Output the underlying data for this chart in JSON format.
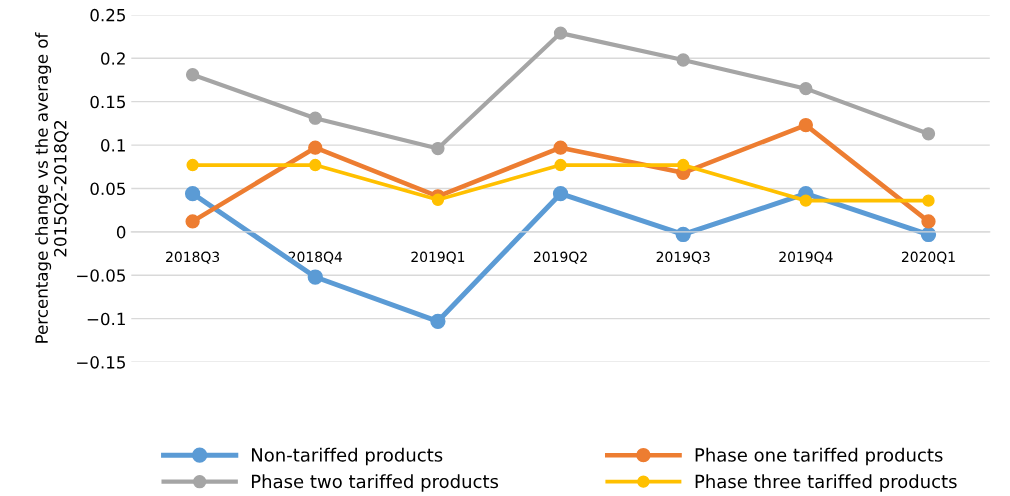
{
  "chart_data": {
    "type": "line",
    "ylabel": "Percentage change vs the average of 2015Q2-2018Q2",
    "categories": [
      "2018Q3",
      "2018Q4",
      "2019Q1",
      "2019Q2",
      "2019Q3",
      "2019Q4",
      "2020Q1"
    ],
    "series": [
      {
        "name": "Non-tariffed products",
        "color": "#5b9bd5",
        "values": [
          0.044,
          -0.052,
          -0.103,
          0.044,
          -0.003,
          0.044,
          -0.003
        ]
      },
      {
        "name": "Phase one tariffed products",
        "color": "#ed7d31",
        "values": [
          0.012,
          0.097,
          0.041,
          0.097,
          0.068,
          0.123,
          0.012
        ]
      },
      {
        "name": "Phase two tariffed products",
        "color": "#a5a5a5",
        "values": [
          0.181,
          0.131,
          0.096,
          0.229,
          0.198,
          0.165,
          0.113
        ]
      },
      {
        "name": "Phase three tariffed products",
        "color": "#ffc000",
        "values": [
          0.077,
          0.077,
          0.037,
          0.077,
          0.077,
          0.036,
          0.036
        ]
      }
    ],
    "ylim": [
      -0.15,
      0.25
    ],
    "yticks": [
      {
        "value": -0.15,
        "label": "−0.15"
      },
      {
        "value": -0.1,
        "label": "−0.1"
      },
      {
        "value": -0.05,
        "label": "−0.05"
      },
      0,
      0.05,
      0.1,
      0.15,
      0.2,
      0.25
    ],
    "grid": "y",
    "legend": "bottom",
    "marker": "circle",
    "line_style": "solid"
  }
}
